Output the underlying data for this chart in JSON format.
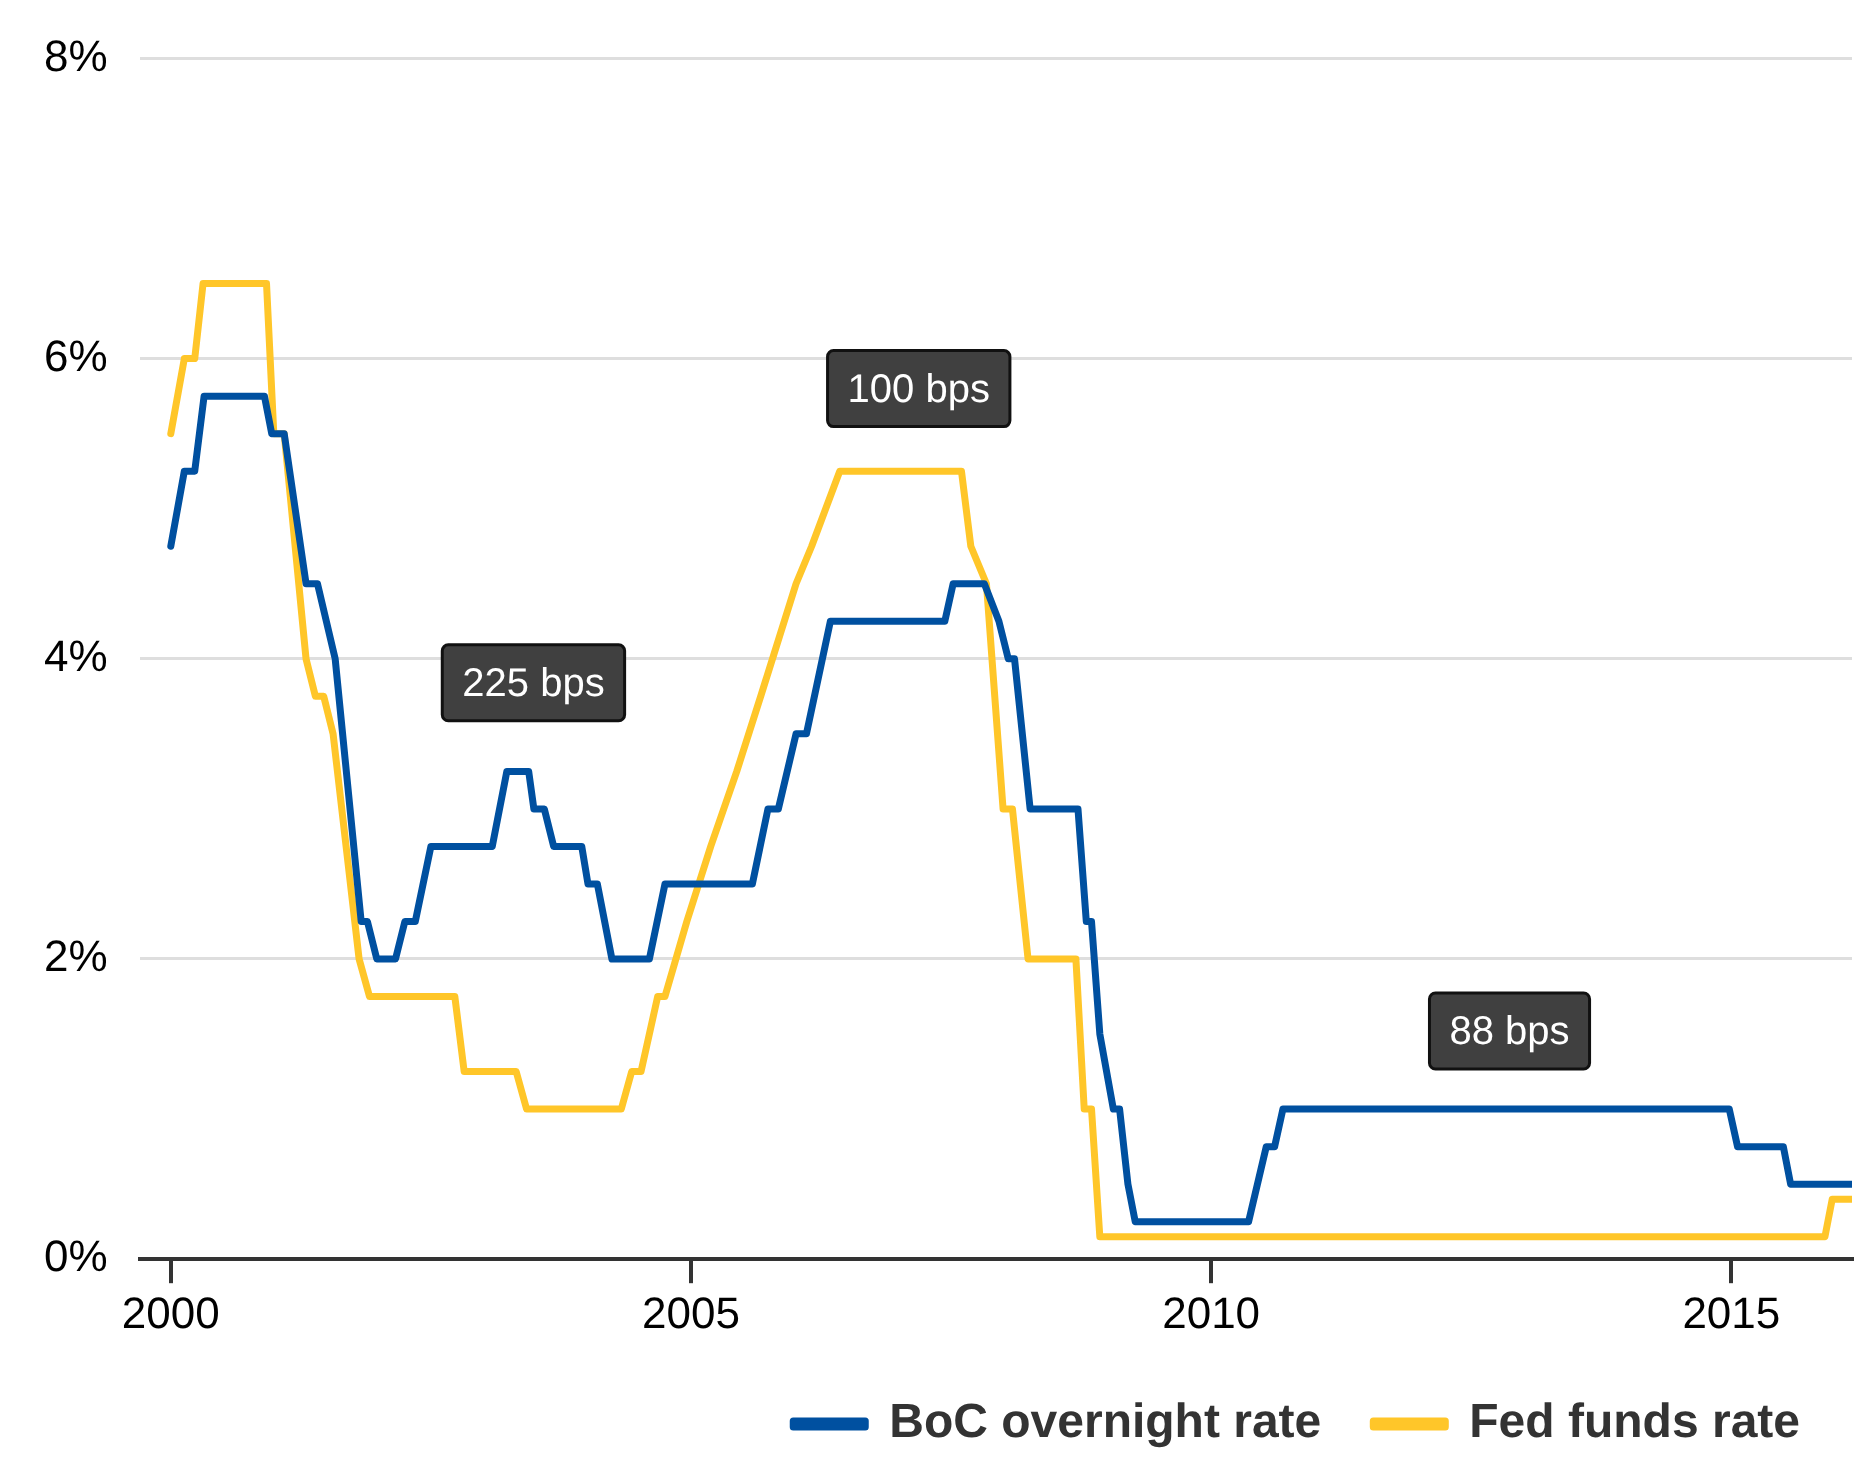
{
  "chart_data": {
    "type": "line",
    "xlim": [
      1999.7,
      2016.16
    ],
    "xticks": [
      2000,
      2005,
      2010,
      2015
    ],
    "ylim": [
      0,
      8
    ],
    "yticks": [
      {
        "value": 0,
        "label": "0%"
      },
      {
        "value": 2,
        "label": "2%"
      },
      {
        "value": 4,
        "label": "4%"
      },
      {
        "value": 6,
        "label": "6%"
      },
      {
        "value": 8,
        "label": "8%"
      }
    ],
    "grid": "y",
    "legend": "bottom",
    "marker": "none",
    "line_style": "solid",
    "annotations": [
      "225 bps",
      "100 bps",
      "88 bps"
    ],
    "series": [
      {
        "name": "BoC overnight rate",
        "color": "#0050a0",
        "x": [
          2000.0,
          2000.13,
          2000.23,
          2000.32,
          2000.9,
          2000.97,
          2001.09,
          2001.3,
          2001.41,
          2001.58,
          2001.83,
          2001.89,
          2001.98,
          2002.16,
          2002.25,
          2002.35,
          2002.5,
          2003.09,
          2003.23,
          2003.44,
          2003.49,
          2003.59,
          2003.68,
          2003.95,
          2004.01,
          2004.1,
          2004.24,
          2004.6,
          2004.75,
          2005.59,
          2005.74,
          2005.84,
          2006.01,
          2006.11,
          2006.34,
          2007.44,
          2007.52,
          2007.82,
          2007.96,
          2008.05,
          2008.11,
          2008.26,
          2008.72,
          2008.8,
          2008.85,
          2008.93,
          2009.06,
          2009.12,
          2009.2,
          2009.27,
          2010.36,
          2010.53,
          2010.61,
          2010.69,
          2014.98,
          2015.06,
          2015.5,
          2015.57,
          2016.16
        ],
        "values": [
          4.75,
          5.25,
          5.25,
          5.75,
          5.75,
          5.5,
          5.5,
          4.5,
          4.5,
          4.0,
          2.25,
          2.25,
          2.0,
          2.0,
          2.25,
          2.25,
          2.75,
          2.75,
          3.25,
          3.25,
          3.0,
          3.0,
          2.75,
          2.75,
          2.5,
          2.5,
          2.0,
          2.0,
          2.5,
          2.5,
          3.0,
          3.0,
          3.5,
          3.5,
          4.25,
          4.25,
          4.5,
          4.5,
          4.25,
          4.0,
          4.0,
          3.0,
          3.0,
          2.25,
          2.25,
          1.5,
          1.0,
          1.0,
          0.5,
          0.25,
          0.25,
          0.75,
          0.75,
          1.0,
          1.0,
          0.75,
          0.75,
          0.5,
          0.5
        ]
      },
      {
        "name": "Fed funds rate",
        "color": "#ffc629",
        "x": [
          2000.0,
          2000.13,
          2000.23,
          2000.31,
          2000.92,
          2000.99,
          2001.09,
          2001.3,
          2001.39,
          2001.47,
          2001.56,
          2001.81,
          2001.91,
          2002.73,
          2002.82,
          2003.32,
          2003.42,
          2004.33,
          2004.43,
          2004.52,
          2004.68,
          2004.75,
          2004.96,
          2005.19,
          2005.44,
          2005.67,
          2006.01,
          2006.16,
          2006.43,
          2007.6,
          2007.69,
          2007.84,
          2008.0,
          2008.09,
          2008.24,
          2008.7,
          2008.78,
          2008.85,
          2008.93,
          2015.9,
          2015.97,
          2016.16
        ],
        "values": [
          5.5,
          6.0,
          6.0,
          6.5,
          6.5,
          5.5,
          5.5,
          4.0,
          3.75,
          3.75,
          3.5,
          2.0,
          1.75,
          1.75,
          1.25,
          1.25,
          1.0,
          1.0,
          1.25,
          1.25,
          1.75,
          1.75,
          2.25,
          2.75,
          3.25,
          3.75,
          4.5,
          4.75,
          5.25,
          5.25,
          4.75,
          4.5,
          3.0,
          3.0,
          2.0,
          2.0,
          1.0,
          1.0,
          0.15,
          0.15,
          0.4,
          0.4
        ]
      }
    ]
  }
}
